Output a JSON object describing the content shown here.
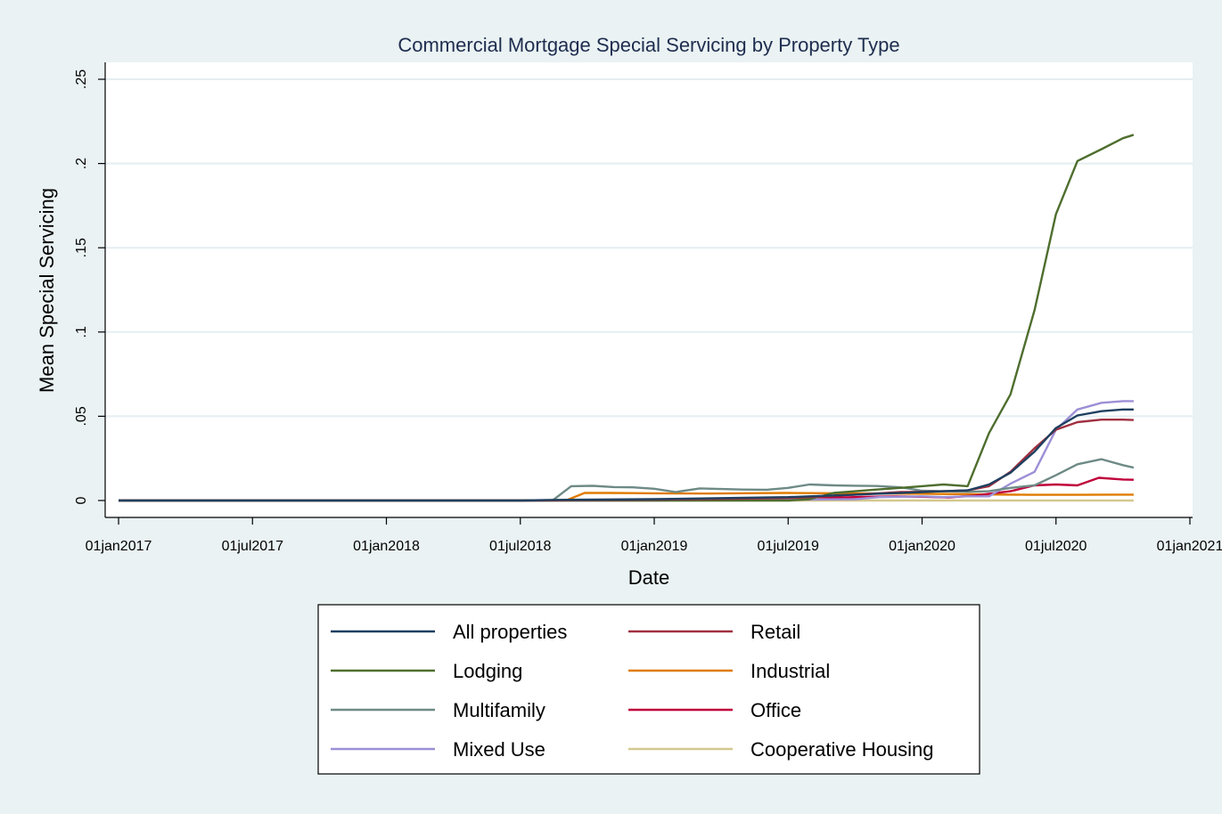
{
  "chart_data": {
    "type": "line",
    "title": "Commercial Mortgage Special Servicing by Property Type",
    "xlabel": "Date",
    "ylabel": "Mean Special Servicing",
    "xlim": [
      2016.95,
      2021.01
    ],
    "ylim": [
      0,
      0.26
    ],
    "x_ticks": [
      {
        "x": 2017.0,
        "label": "01jan2017"
      },
      {
        "x": 2017.5,
        "label": "01jul2017"
      },
      {
        "x": 2018.0,
        "label": "01jan2018"
      },
      {
        "x": 2018.5,
        "label": "01jul2018"
      },
      {
        "x": 2019.0,
        "label": "01jan2019"
      },
      {
        "x": 2019.5,
        "label": "01jul2019"
      },
      {
        "x": 2020.0,
        "label": "01jan2020"
      },
      {
        "x": 2020.5,
        "label": "01jul2020"
      },
      {
        "x": 2021.0,
        "label": "01jan2021"
      }
    ],
    "y_ticks": [
      {
        "y": 0,
        "label": "0"
      },
      {
        "y": 0.05,
        "label": ".05"
      },
      {
        "y": 0.1,
        "label": ".1"
      },
      {
        "y": 0.15,
        "label": ".15"
      },
      {
        "y": 0.2,
        "label": ".2"
      },
      {
        "y": 0.25,
        "label": ".25"
      }
    ],
    "grid": true,
    "legend_position": "bottom",
    "series": [
      {
        "name": "Cooperative Housing",
        "color": "#d4c88e",
        "points": [
          [
            2017.0,
            0
          ],
          [
            2018.0,
            0
          ],
          [
            2019.0,
            0
          ],
          [
            2019.5,
            0
          ],
          [
            2020.0,
            0
          ],
          [
            2020.2,
            0
          ],
          [
            2020.5,
            0
          ],
          [
            2020.79,
            0
          ]
        ]
      },
      {
        "name": "Industrial",
        "color": "#e07b00",
        "points": [
          [
            2017.0,
            0
          ],
          [
            2018.0,
            0
          ],
          [
            2018.5,
            0
          ],
          [
            2018.67,
            0
          ],
          [
            2018.74,
            0.0045
          ],
          [
            2018.83,
            0.0045
          ],
          [
            2018.92,
            0.0044
          ],
          [
            2019.0,
            0.0043
          ],
          [
            2019.1,
            0.0042
          ],
          [
            2019.2,
            0.0041
          ],
          [
            2019.3,
            0.0043
          ],
          [
            2019.4,
            0.0044
          ],
          [
            2019.5,
            0.0045
          ],
          [
            2019.7,
            0.0043
          ],
          [
            2019.9,
            0.0041
          ],
          [
            2020.0,
            0.004
          ],
          [
            2020.2,
            0.0037
          ],
          [
            2020.4,
            0.0034
          ],
          [
            2020.5,
            0.0034
          ],
          [
            2020.6,
            0.0034
          ],
          [
            2020.7,
            0.0035
          ],
          [
            2020.79,
            0.0035
          ]
        ]
      },
      {
        "name": "Office",
        "color": "#c0003a",
        "points": [
          [
            2017.0,
            0
          ],
          [
            2018.0,
            0
          ],
          [
            2018.5,
            0
          ],
          [
            2019.0,
            0.0005
          ],
          [
            2019.3,
            0.0008
          ],
          [
            2019.5,
            0.0012
          ],
          [
            2019.6,
            0.002
          ],
          [
            2019.7,
            0.0018
          ],
          [
            2019.8,
            0.0022
          ],
          [
            2019.9,
            0.0025
          ],
          [
            2020.0,
            0.0022
          ],
          [
            2020.1,
            0.0018
          ],
          [
            2020.2,
            0.003
          ],
          [
            2020.25,
            0.004
          ],
          [
            2020.33,
            0.0055
          ],
          [
            2020.42,
            0.009
          ],
          [
            2020.5,
            0.0095
          ],
          [
            2020.58,
            0.009
          ],
          [
            2020.66,
            0.0135
          ],
          [
            2020.75,
            0.0125
          ],
          [
            2020.79,
            0.0123
          ]
        ]
      },
      {
        "name": "Mixed Use",
        "color": "#9d8fd6",
        "points": [
          [
            2017.0,
            0
          ],
          [
            2017.24,
            0
          ],
          [
            2018.0,
            0
          ],
          [
            2018.5,
            0
          ],
          [
            2019.0,
            0
          ],
          [
            2019.5,
            0.0005
          ],
          [
            2019.75,
            0.0008
          ],
          [
            2019.84,
            0.002
          ],
          [
            2020.0,
            0.0025
          ],
          [
            2020.08,
            0.002
          ],
          [
            2020.17,
            0.0025
          ],
          [
            2020.25,
            0.0025
          ],
          [
            2020.33,
            0.01
          ],
          [
            2020.42,
            0.017
          ],
          [
            2020.5,
            0.042
          ],
          [
            2020.58,
            0.054
          ],
          [
            2020.67,
            0.058
          ],
          [
            2020.75,
            0.059
          ],
          [
            2020.79,
            0.059
          ]
        ]
      },
      {
        "name": "Multifamily",
        "color": "#6e8a86",
        "points": [
          [
            2017.0,
            0
          ],
          [
            2018.0,
            0
          ],
          [
            2018.5,
            0
          ],
          [
            2018.62,
            0
          ],
          [
            2018.69,
            0.0085
          ],
          [
            2018.77,
            0.0087
          ],
          [
            2018.85,
            0.008
          ],
          [
            2018.92,
            0.0078
          ],
          [
            2019.0,
            0.007
          ],
          [
            2019.08,
            0.005
          ],
          [
            2019.17,
            0.0072
          ],
          [
            2019.25,
            0.0068
          ],
          [
            2019.33,
            0.0065
          ],
          [
            2019.42,
            0.0064
          ],
          [
            2019.5,
            0.0075
          ],
          [
            2019.58,
            0.0095
          ],
          [
            2019.67,
            0.009
          ],
          [
            2019.75,
            0.0088
          ],
          [
            2019.83,
            0.0086
          ],
          [
            2019.92,
            0.0078
          ],
          [
            2020.0,
            0.0058
          ],
          [
            2020.08,
            0.0055
          ],
          [
            2020.17,
            0.0052
          ],
          [
            2020.25,
            0.0055
          ],
          [
            2020.33,
            0.0075
          ],
          [
            2020.42,
            0.009
          ],
          [
            2020.5,
            0.015
          ],
          [
            2020.58,
            0.0215
          ],
          [
            2020.67,
            0.0245
          ],
          [
            2020.75,
            0.021
          ],
          [
            2020.79,
            0.0195
          ]
        ]
      },
      {
        "name": "Lodging",
        "color": "#4e6e2e",
        "points": [
          [
            2017.0,
            0
          ],
          [
            2018.0,
            0
          ],
          [
            2018.5,
            0
          ],
          [
            2019.0,
            0
          ],
          [
            2019.5,
            0
          ],
          [
            2019.58,
            0.0008
          ],
          [
            2019.67,
            0.0045
          ],
          [
            2019.75,
            0.0055
          ],
          [
            2019.83,
            0.0065
          ],
          [
            2019.92,
            0.0075
          ],
          [
            2020.0,
            0.0085
          ],
          [
            2020.08,
            0.0095
          ],
          [
            2020.17,
            0.0085
          ],
          [
            2020.25,
            0.04
          ],
          [
            2020.33,
            0.063
          ],
          [
            2020.42,
            0.113
          ],
          [
            2020.5,
            0.17
          ],
          [
            2020.58,
            0.2015
          ],
          [
            2020.67,
            0.2085
          ],
          [
            2020.75,
            0.215
          ],
          [
            2020.79,
            0.217
          ]
        ]
      },
      {
        "name": "Retail",
        "color": "#a03040",
        "points": [
          [
            2017.0,
            0
          ],
          [
            2018.0,
            0
          ],
          [
            2018.5,
            0
          ],
          [
            2019.0,
            0.0005
          ],
          [
            2019.5,
            0.0015
          ],
          [
            2019.58,
            0.002
          ],
          [
            2019.67,
            0.0028
          ],
          [
            2019.75,
            0.0035
          ],
          [
            2019.83,
            0.0042
          ],
          [
            2019.92,
            0.005
          ],
          [
            2020.0,
            0.0052
          ],
          [
            2020.08,
            0.0055
          ],
          [
            2020.17,
            0.006
          ],
          [
            2020.25,
            0.0085
          ],
          [
            2020.33,
            0.017
          ],
          [
            2020.42,
            0.031
          ],
          [
            2020.5,
            0.042
          ],
          [
            2020.58,
            0.0465
          ],
          [
            2020.67,
            0.048
          ],
          [
            2020.75,
            0.048
          ],
          [
            2020.79,
            0.0478
          ]
        ]
      },
      {
        "name": "All properties",
        "color": "#1f3f5f",
        "points": [
          [
            2017.0,
            0
          ],
          [
            2018.0,
            0
          ],
          [
            2018.5,
            0
          ],
          [
            2018.6,
            0.0003
          ],
          [
            2019.0,
            0.0008
          ],
          [
            2019.5,
            0.002
          ],
          [
            2019.58,
            0.0025
          ],
          [
            2019.67,
            0.003
          ],
          [
            2019.75,
            0.0035
          ],
          [
            2019.83,
            0.004
          ],
          [
            2019.92,
            0.0045
          ],
          [
            2020.0,
            0.005
          ],
          [
            2020.08,
            0.0055
          ],
          [
            2020.17,
            0.006
          ],
          [
            2020.25,
            0.0095
          ],
          [
            2020.33,
            0.0165
          ],
          [
            2020.42,
            0.029
          ],
          [
            2020.5,
            0.043
          ],
          [
            2020.58,
            0.0505
          ],
          [
            2020.67,
            0.053
          ],
          [
            2020.75,
            0.054
          ],
          [
            2020.79,
            0.054
          ]
        ]
      }
    ],
    "legend": [
      {
        "name": "All properties",
        "color": "#1f3f5f"
      },
      {
        "name": "Retail",
        "color": "#a03040"
      },
      {
        "name": "Lodging",
        "color": "#4e6e2e"
      },
      {
        "name": "Industrial",
        "color": "#e07b00"
      },
      {
        "name": "Multifamily",
        "color": "#6e8a86"
      },
      {
        "name": "Office",
        "color": "#c0003a"
      },
      {
        "name": "Mixed Use",
        "color": "#9d8fd6"
      },
      {
        "name": "Cooperative Housing",
        "color": "#d4c88e"
      }
    ]
  }
}
